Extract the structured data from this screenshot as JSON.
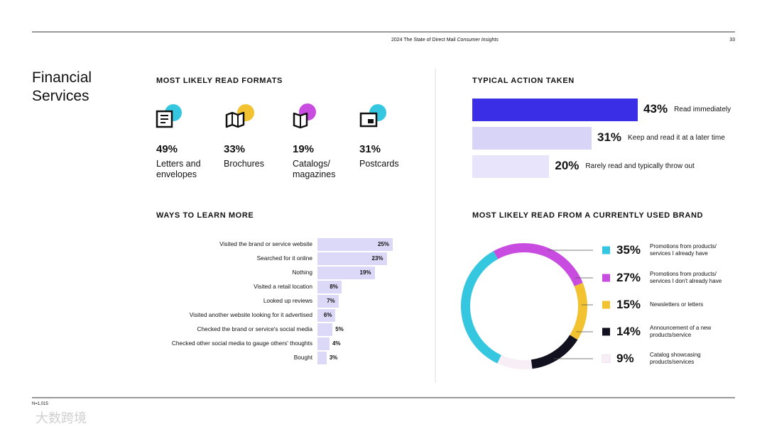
{
  "header": {
    "report": "2024 The State of Direct Mail",
    "report_emphasis": "Consumer Insights",
    "page": 33
  },
  "section_title": "Financial Services",
  "footer_note": "N=1,015",
  "watermark": "大数跨境",
  "chart_data": [
    {
      "type": "stat",
      "title": "MOST LIKELY READ FORMATS",
      "categories": [
        "Letters and envelopes",
        "Brochures",
        "Catalogs/ magazines",
        "Postcards"
      ],
      "values": [
        49,
        33,
        19,
        31
      ],
      "value_labels": [
        "49%",
        "33%",
        "19%",
        "31%"
      ],
      "colors": [
        "#35c6e0",
        "#f2c230",
        "#c94ce0",
        "#35c6e0"
      ]
    },
    {
      "type": "bar",
      "title": "TYPICAL ACTION TAKEN",
      "categories": [
        "Read immediately",
        "Keep and read it at a later time",
        "Rarely read and typically throw out"
      ],
      "values": [
        43,
        31,
        20
      ],
      "value_labels": [
        "43%",
        "31%",
        "20%"
      ],
      "colors": [
        "#3a2ee6",
        "#d8d4f8",
        "#e7e4fb"
      ]
    },
    {
      "type": "bar",
      "title": "WAYS TO LEARN MORE",
      "categories": [
        "Visited the brand or service website",
        "Searched for it online",
        "Nothing",
        "Visited a retail location",
        "Looked up reviews",
        "Visited another website looking for it advertised",
        "Checked the brand or service's social media",
        "Checked other social media to gauge others' thoughts",
        "Bought"
      ],
      "values": [
        25,
        23,
        19,
        8,
        7,
        6,
        5,
        4,
        3
      ],
      "value_labels": [
        "25%",
        "23%",
        "19%",
        "8%",
        "7%",
        "6%",
        "5%",
        "4%",
        "3%"
      ],
      "colors": [
        "#dcd8f8"
      ]
    },
    {
      "type": "donut",
      "title": "MOST LIKELY READ FROM A CURRENTLY USED BRAND",
      "categories": [
        "Promotions from products/ services I already have",
        "Promotions from products/ services I don't already have",
        "Newsletters or letters",
        "Announcement of a new products/service",
        "Catalog showcasing products/services"
      ],
      "values": [
        35,
        27,
        15,
        14,
        9
      ],
      "value_labels": [
        "35%",
        "27%",
        "15%",
        "14%",
        "9%"
      ],
      "colors": [
        "#35c6e0",
        "#c94ce0",
        "#f2c230",
        "#111120",
        "#f8eef6"
      ]
    }
  ]
}
